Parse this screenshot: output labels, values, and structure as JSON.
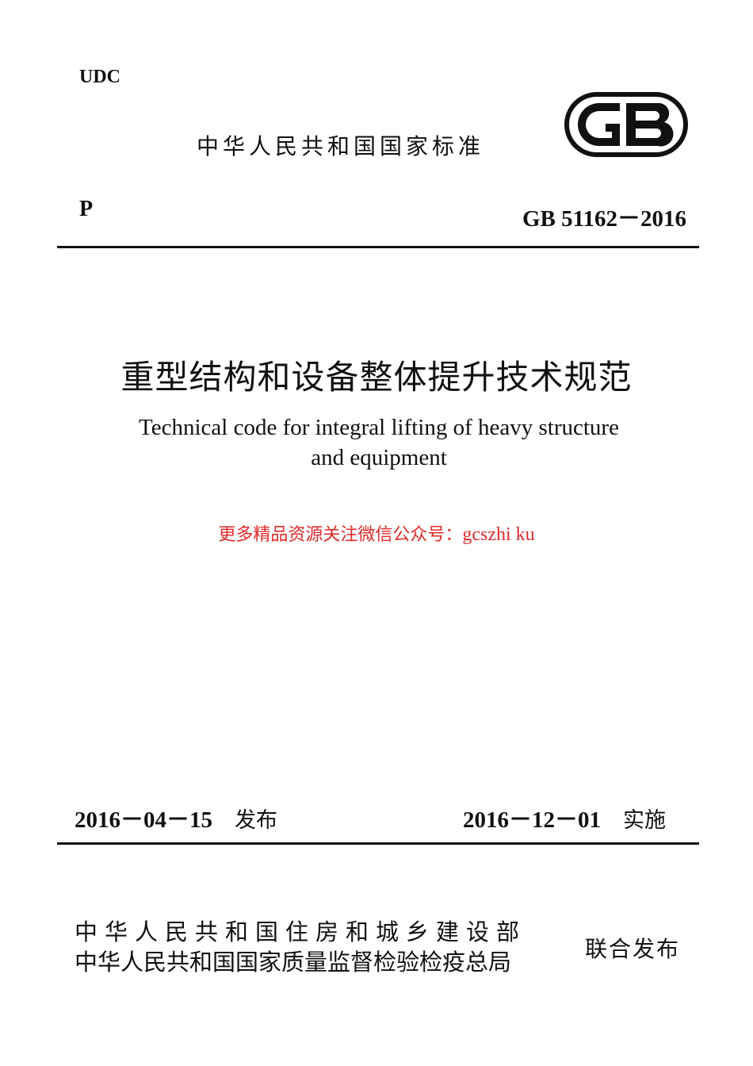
{
  "header": {
    "udc": "UDC",
    "standard_type_cn": "中华人民共和国国家标准",
    "logo_text": "GB",
    "category": "P",
    "standard_code": "GB 51162－2016"
  },
  "title": {
    "chinese": "重型结构和设备整体提升技术规范",
    "english_line1": "Technical code for integral lifting of heavy structure",
    "english_line2": "and equipment"
  },
  "promo": {
    "text_cn": "更多精品资源关注微信公众号：",
    "account": "gcszhi ku",
    "color": "#e02a2a"
  },
  "dates": {
    "issue_date": "2016－04－15",
    "issue_label": "发布",
    "effective_date": "2016－12－01",
    "effective_label": "实施"
  },
  "issuers": {
    "line1": "中华人民共和国住房和城乡建设部",
    "line2": "中华人民共和国国家质量监督检验检疫总局",
    "joint_label": "联合发布"
  }
}
